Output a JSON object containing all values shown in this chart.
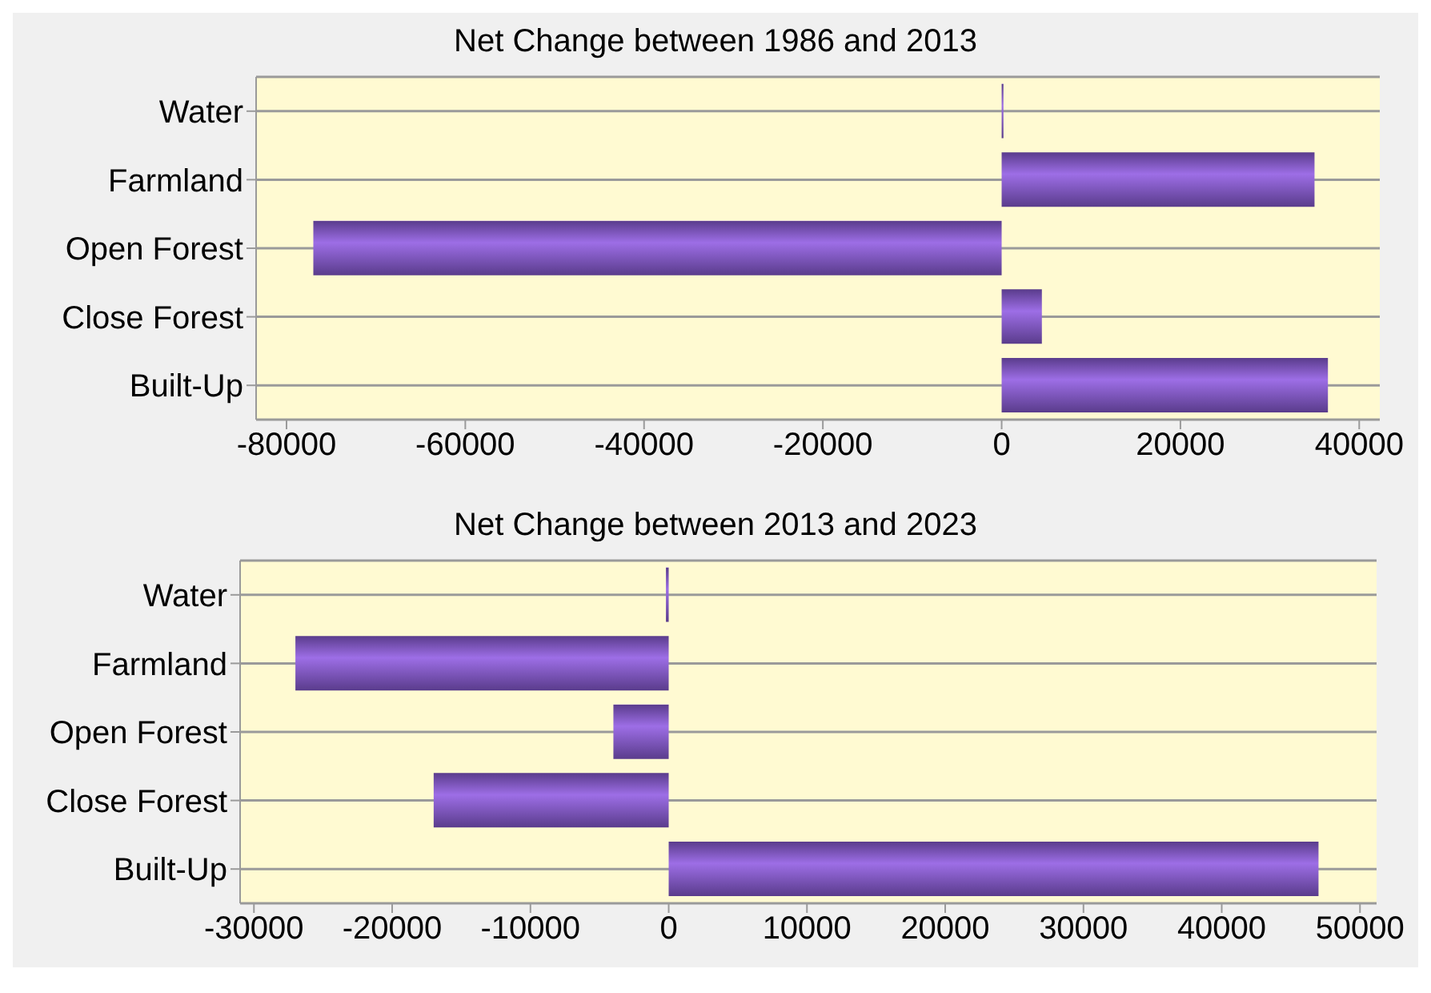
{
  "chart_data": [
    {
      "type": "bar",
      "orientation": "horizontal",
      "title": "Net Change between 1986 and 2013",
      "categories": [
        "Water",
        "Farmland",
        "Open Forest",
        "Close Forest",
        "Built-Up"
      ],
      "values": [
        200,
        35000,
        -77000,
        4500,
        36500
      ],
      "color": "#9d6ee6",
      "xlim": [
        -83400,
        42300
      ],
      "xticks": [
        -80000,
        -60000,
        -40000,
        -20000,
        0,
        20000,
        40000
      ],
      "grid": "y"
    },
    {
      "type": "bar",
      "orientation": "horizontal",
      "title": "Net Change between 2013 and 2023",
      "categories": [
        "Water",
        "Farmland",
        "Open Forest",
        "Close Forest",
        "Built-Up"
      ],
      "values": [
        -200,
        -27000,
        -4000,
        -17000,
        47000
      ],
      "color": "#9d6ee6",
      "xlim": [
        -31000,
        51200
      ],
      "xticks": [
        -30000,
        -20000,
        -10000,
        0,
        10000,
        20000,
        30000,
        40000,
        50000
      ],
      "grid": "y"
    }
  ]
}
